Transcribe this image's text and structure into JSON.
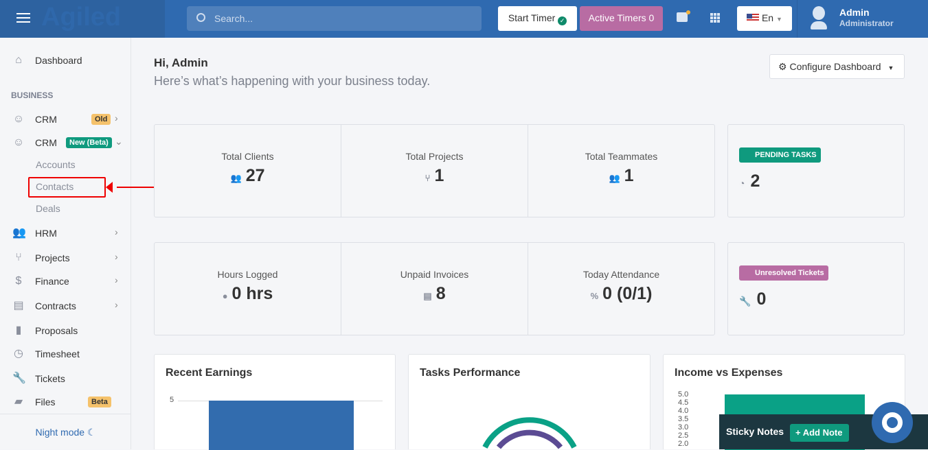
{
  "header": {
    "logo": "Agiled",
    "search_placeholder": "Search...",
    "start_timer": "Start Timer",
    "active_timers": "Active Timers 0",
    "language": "En",
    "user_name": "Admin",
    "user_role": "Administrator"
  },
  "sidebar": {
    "dashboard": "Dashboard",
    "section": "BUSINESS",
    "items": [
      {
        "label": "CRM",
        "badge": "Old",
        "badge_color": "#f5c26b"
      },
      {
        "label": "CRM",
        "badge": "New (Beta)",
        "badge_color": "#0f9a7e"
      },
      {
        "label": "HRM"
      },
      {
        "label": "Projects"
      },
      {
        "label": "Finance"
      },
      {
        "label": "Contracts"
      },
      {
        "label": "Proposals"
      },
      {
        "label": "Timesheet"
      },
      {
        "label": "Tickets"
      },
      {
        "label": "Files",
        "badge": "Beta",
        "badge_color": "#f5c26b"
      }
    ],
    "crm_sub": [
      "Accounts",
      "Contacts",
      "Deals"
    ],
    "night_mode": "Night mode"
  },
  "main": {
    "greeting": "Hi, Admin",
    "subtitle": "Here’s what’s happening with your business today.",
    "configure": "Configure Dashboard",
    "stats1": [
      {
        "title": "Total Clients",
        "value": "27"
      },
      {
        "title": "Total Projects",
        "value": "1"
      },
      {
        "title": "Total Teammates",
        "value": "1"
      }
    ],
    "pending": {
      "label": "PENDING TASKS",
      "value": "2",
      "color": "#0f9a7e"
    },
    "stats2": [
      {
        "title": "Hours Logged",
        "value": "0 hrs"
      },
      {
        "title": "Unpaid Invoices",
        "value": "8"
      },
      {
        "title": "Today Attendance",
        "value": "0 (0/1)"
      }
    ],
    "tickets": {
      "label": "Unresolved Tickets",
      "value": "0",
      "color": "#b86ca3"
    },
    "charts": {
      "recent_earnings": "Recent Earnings",
      "recent_tick": "5",
      "tasks": "Tasks Performance",
      "income": "Income vs Expenses",
      "income_ticks": [
        "5.0",
        "4.5",
        "4.0",
        "3.5",
        "3.0",
        "2.5",
        "2.0"
      ]
    }
  },
  "sticky": {
    "title": "Sticky Notes",
    "add": "+ Add Note"
  }
}
